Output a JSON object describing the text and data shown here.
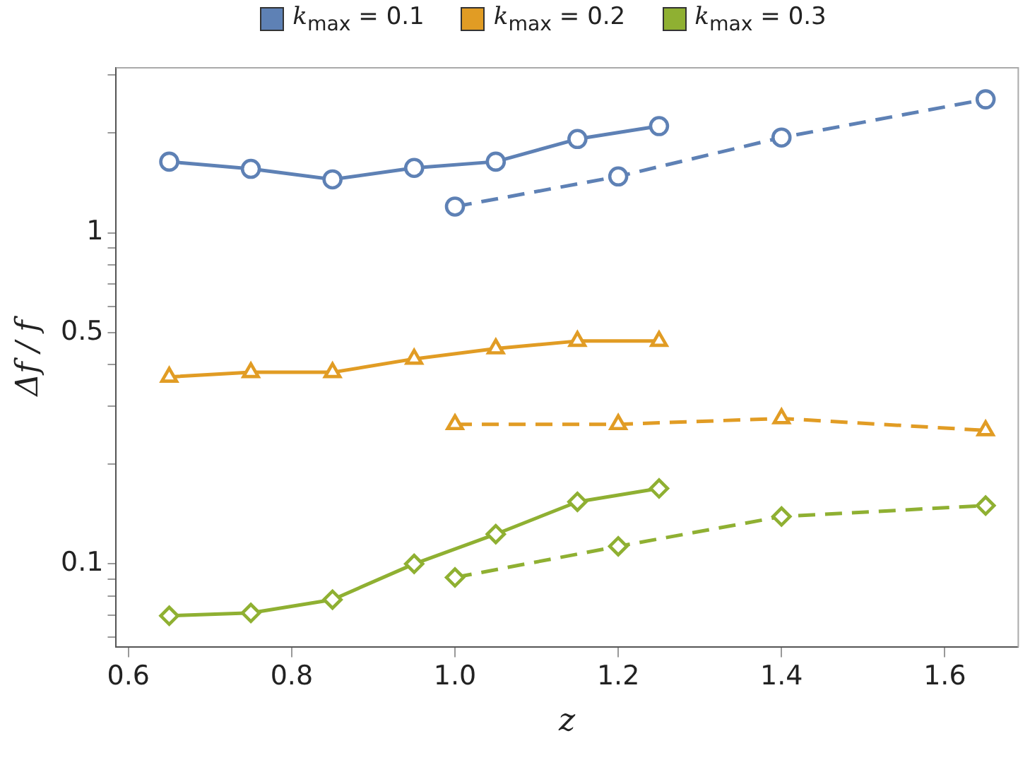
{
  "chart_data": {
    "type": "line",
    "xlabel": "z",
    "ylabel": "Δf / f",
    "log": "y",
    "grid": false,
    "legend": "top",
    "xlim": [
      0.585,
      1.69
    ],
    "xticks": [
      0.6,
      {
        "value": 0.8,
        "label": "0.8"
      },
      {
        "value": 1.0,
        "label": "1.0"
      },
      1.2,
      1.4,
      1.6
    ],
    "ylim": [
      0.056,
      3.15
    ],
    "yticks": [
      {
        "value": 0.06,
        "label": null
      },
      {
        "value": 0.07,
        "label": null
      },
      {
        "value": 0.08,
        "label": null
      },
      {
        "value": 0.09,
        "label": null
      },
      0.1,
      {
        "value": 0.2,
        "label": null
      },
      {
        "value": 0.3,
        "label": null
      },
      {
        "value": 0.4,
        "label": null
      },
      0.5,
      {
        "value": 0.6,
        "label": null
      },
      {
        "value": 0.7,
        "label": null
      },
      {
        "value": 0.8,
        "label": null
      },
      {
        "value": 0.9,
        "label": null
      },
      1,
      {
        "value": 2,
        "label": null
      },
      {
        "value": 3,
        "label": null
      }
    ],
    "series": [
      {
        "name": "k$_{max}$ = 0.1",
        "color": "#5e81b5",
        "marker": "circle",
        "line_style": "solid",
        "x": [
          0.65,
          0.75,
          0.85,
          0.95,
          1.05,
          1.15,
          1.25
        ],
        "values": [
          1.64,
          1.56,
          1.45,
          1.57,
          1.64,
          1.92,
          2.1
        ]
      },
      {
        "color": "#5e81b5",
        "marker": "circle",
        "line_style": "dashed",
        "x": [
          1.0,
          1.2,
          1.4,
          1.65
        ],
        "values": [
          1.2,
          1.48,
          1.94,
          2.53
        ]
      },
      {
        "name": "k$_{max}$ = 0.2",
        "color": "#e19c24",
        "marker": "triangle",
        "line_style": "solid",
        "x": [
          0.65,
          0.75,
          0.85,
          0.95,
          1.05,
          1.15,
          1.25
        ],
        "values": [
          0.367,
          0.379,
          0.379,
          0.416,
          0.447,
          0.471,
          0.471
        ]
      },
      {
        "color": "#e19c24",
        "marker": "triangle",
        "line_style": "dashed",
        "x": [
          1.0,
          1.2,
          1.4,
          1.65
        ],
        "values": [
          0.264,
          0.264,
          0.275,
          0.253
        ]
      },
      {
        "name": "k$_{max}$ = 0.3",
        "color": "#8fb032",
        "marker": "diamond",
        "line_style": "solid",
        "x": [
          0.65,
          0.75,
          0.85,
          0.95,
          1.05,
          1.15,
          1.25
        ],
        "values": [
          0.0697,
          0.0711,
          0.078,
          0.1,
          0.123,
          0.154,
          0.169
        ]
      },
      {
        "color": "#8fb032",
        "marker": "diamond",
        "line_style": "dashed",
        "x": [
          1.0,
          1.2,
          1.4,
          1.65
        ],
        "values": [
          0.091,
          0.113,
          0.139,
          0.15
        ]
      }
    ]
  }
}
